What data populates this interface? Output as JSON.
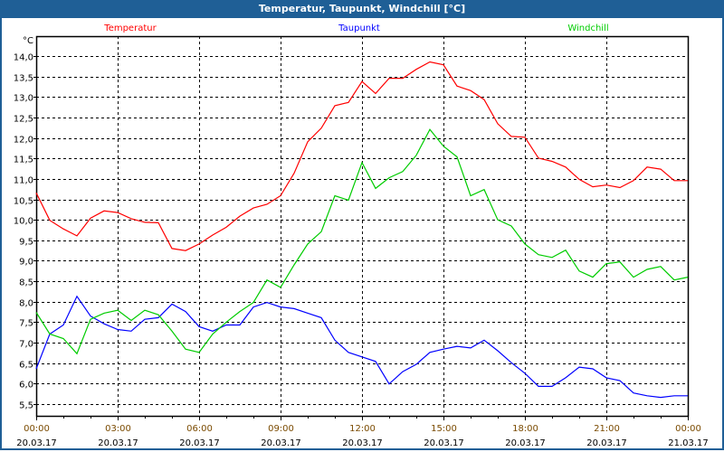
{
  "window": {
    "title": "Temperatur, Taupunkt, Windchill [°C]"
  },
  "chart_data": {
    "type": "line",
    "title": "Temperatur, Taupunkt, Windchill [°C]",
    "ylabel": "°C",
    "xlabel": "",
    "ylim": [
      5.21,
      14.49
    ],
    "xlim_hours": [
      0,
      24
    ],
    "grid": true,
    "legend_placement": "top",
    "yticks": [
      5.5,
      6.0,
      6.5,
      7.0,
      7.5,
      8.0,
      8.5,
      9.0,
      9.5,
      10.0,
      10.5,
      11.0,
      11.5,
      12.0,
      12.5,
      13.0,
      13.5,
      14.0
    ],
    "ytick_labels": [
      "5,5",
      "6,0",
      "6,5",
      "7,0",
      "7,5",
      "8,0",
      "8,5",
      "9,0",
      "9,5",
      "10,0",
      "10,5",
      "11,0",
      "11,5",
      "12,0",
      "12,5",
      "13,0",
      "13,5",
      "14,0"
    ],
    "xticks": [
      {
        "hour": 0,
        "time": "00:00",
        "date": "20.03.17"
      },
      {
        "hour": 3,
        "time": "03:00",
        "date": "20.03.17"
      },
      {
        "hour": 6,
        "time": "06:00",
        "date": "20.03.17"
      },
      {
        "hour": 9,
        "time": "09:00",
        "date": "20.03.17"
      },
      {
        "hour": 12,
        "time": "12:00",
        "date": "20.03.17"
      },
      {
        "hour": 15,
        "time": "15:00",
        "date": "20.03.17"
      },
      {
        "hour": 18,
        "time": "18:00",
        "date": "20.03.17"
      },
      {
        "hour": 21,
        "time": "21:00",
        "date": "20.03.17"
      },
      {
        "hour": 24,
        "time": "00:00",
        "date": "21.03.17"
      }
    ],
    "x_step_hours": 0.5,
    "series": [
      {
        "name": "Temperatur",
        "color": "#ff0000",
        "values": [
          10.66,
          9.99,
          9.78,
          9.61,
          10.04,
          10.22,
          10.18,
          10.03,
          9.94,
          9.93,
          9.3,
          9.25,
          9.41,
          9.63,
          9.82,
          10.09,
          10.29,
          10.38,
          10.59,
          11.14,
          11.91,
          12.24,
          12.79,
          12.87,
          13.38,
          13.09,
          13.46,
          13.46,
          13.68,
          13.86,
          13.79,
          13.27,
          13.16,
          12.94,
          12.35,
          12.04,
          12.02,
          11.51,
          11.43,
          11.29,
          10.99,
          10.81,
          10.85,
          10.79,
          10.96,
          11.29,
          11.24,
          10.96,
          10.96
        ]
      },
      {
        "name": "Taupunkt",
        "color": "#0000ff",
        "values": [
          6.36,
          7.21,
          7.43,
          8.13,
          7.65,
          7.46,
          7.32,
          7.28,
          7.57,
          7.61,
          7.94,
          7.76,
          7.39,
          7.28,
          7.43,
          7.43,
          7.87,
          7.98,
          7.87,
          7.83,
          7.72,
          7.61,
          7.06,
          6.76,
          6.65,
          6.54,
          5.99,
          6.29,
          6.47,
          6.76,
          6.84,
          6.91,
          6.87,
          7.06,
          6.8,
          6.51,
          6.25,
          5.93,
          5.93,
          6.14,
          6.4,
          6.36,
          6.14,
          6.07,
          5.77,
          5.7,
          5.66,
          5.7,
          5.7
        ]
      },
      {
        "name": "Windchill",
        "color": "#00cc00",
        "values": [
          7.74,
          7.21,
          7.1,
          6.73,
          7.57,
          7.72,
          7.79,
          7.54,
          7.79,
          7.68,
          7.28,
          6.84,
          6.76,
          7.21,
          7.5,
          7.76,
          7.98,
          8.53,
          8.35,
          8.9,
          9.41,
          9.71,
          10.59,
          10.48,
          11.4,
          10.77,
          11.03,
          11.18,
          11.58,
          12.21,
          11.8,
          11.54,
          10.59,
          10.74,
          10.0,
          9.85,
          9.41,
          9.15,
          9.08,
          9.26,
          8.75,
          8.6,
          8.93,
          8.97,
          8.6,
          8.79,
          8.86,
          8.53,
          8.6
        ]
      }
    ]
  }
}
